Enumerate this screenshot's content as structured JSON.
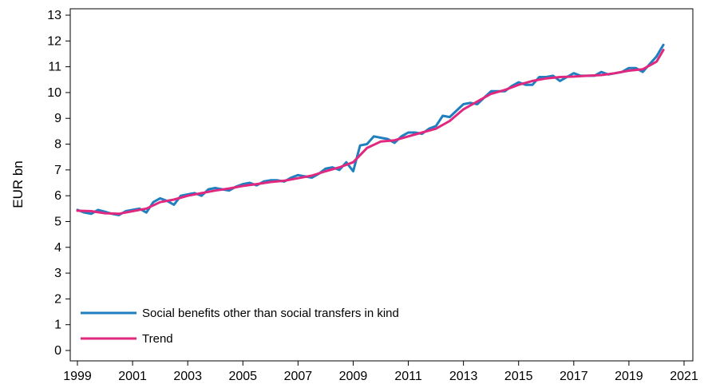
{
  "chart_data": {
    "type": "line",
    "title": "",
    "xlabel": "",
    "ylabel": "EUR bn",
    "xlim": [
      1999,
      2021
    ],
    "ylim": [
      0,
      13
    ],
    "xticks": [
      "1999",
      "2001",
      "2003",
      "2005",
      "2007",
      "2009",
      "2011",
      "2013",
      "2015",
      "2017",
      "2019",
      "2021"
    ],
    "yticks": [
      "0",
      "1",
      "2",
      "3",
      "4",
      "5",
      "6",
      "7",
      "8",
      "9",
      "10",
      "11",
      "12",
      "13"
    ],
    "grid": false,
    "legend_position": "bottom-left",
    "series": [
      {
        "name": "Social benefits other than social transfers in kind",
        "color": "#1f7fbf",
        "x": [
          1999.0,
          1999.25,
          1999.5,
          1999.75,
          2000.0,
          2000.25,
          2000.5,
          2000.75,
          2001.0,
          2001.25,
          2001.5,
          2001.75,
          2002.0,
          2002.25,
          2002.5,
          2002.75,
          2003.0,
          2003.25,
          2003.5,
          2003.75,
          2004.0,
          2004.25,
          2004.5,
          2004.75,
          2005.0,
          2005.25,
          2005.5,
          2005.75,
          2006.0,
          2006.25,
          2006.5,
          2006.75,
          2007.0,
          2007.25,
          2007.5,
          2007.75,
          2008.0,
          2008.25,
          2008.5,
          2008.75,
          2009.0,
          2009.25,
          2009.5,
          2009.75,
          2010.0,
          2010.25,
          2010.5,
          2010.75,
          2011.0,
          2011.25,
          2011.5,
          2011.75,
          2012.0,
          2012.25,
          2012.5,
          2012.75,
          2013.0,
          2013.25,
          2013.5,
          2013.75,
          2014.0,
          2014.25,
          2014.5,
          2014.75,
          2015.0,
          2015.25,
          2015.5,
          2015.75,
          2016.0,
          2016.25,
          2016.5,
          2016.75,
          2017.0,
          2017.25,
          2017.5,
          2017.75,
          2018.0,
          2018.25,
          2018.5,
          2018.75,
          2019.0,
          2019.25,
          2019.5,
          2019.75,
          2020.0,
          2020.25
        ],
        "values": [
          5.45,
          5.35,
          5.3,
          5.45,
          5.38,
          5.3,
          5.25,
          5.4,
          5.45,
          5.5,
          5.35,
          5.75,
          5.9,
          5.8,
          5.65,
          6.0,
          6.05,
          6.1,
          6.0,
          6.25,
          6.3,
          6.25,
          6.2,
          6.35,
          6.45,
          6.5,
          6.4,
          6.55,
          6.6,
          6.6,
          6.55,
          6.7,
          6.8,
          6.75,
          6.7,
          6.85,
          7.05,
          7.1,
          7.0,
          7.3,
          6.95,
          7.95,
          8.0,
          8.3,
          8.25,
          8.2,
          8.05,
          8.3,
          8.45,
          8.45,
          8.4,
          8.6,
          8.7,
          9.1,
          9.05,
          9.3,
          9.55,
          9.6,
          9.55,
          9.8,
          10.05,
          10.05,
          10.05,
          10.25,
          10.4,
          10.3,
          10.3,
          10.6,
          10.6,
          10.65,
          10.45,
          10.6,
          10.75,
          10.65,
          10.65,
          10.65,
          10.8,
          10.7,
          10.75,
          10.8,
          10.95,
          10.95,
          10.8,
          11.1,
          11.4,
          11.85
        ]
      },
      {
        "name": "Trend",
        "color": "#e0287f",
        "x": [
          1999.0,
          1999.5,
          2000.0,
          2000.5,
          2001.0,
          2001.5,
          2002.0,
          2002.5,
          2003.0,
          2003.5,
          2004.0,
          2004.5,
          2005.0,
          2005.5,
          2006.0,
          2006.5,
          2007.0,
          2007.5,
          2008.0,
          2008.5,
          2009.0,
          2009.5,
          2010.0,
          2010.5,
          2011.0,
          2011.5,
          2012.0,
          2012.5,
          2013.0,
          2013.5,
          2014.0,
          2014.5,
          2015.0,
          2015.5,
          2016.0,
          2016.5,
          2017.0,
          2017.5,
          2018.0,
          2018.5,
          2019.0,
          2019.5,
          2020.0,
          2020.25
        ],
        "values": [
          5.42,
          5.4,
          5.32,
          5.3,
          5.4,
          5.5,
          5.75,
          5.85,
          6.0,
          6.1,
          6.2,
          6.28,
          6.38,
          6.45,
          6.53,
          6.58,
          6.68,
          6.78,
          6.95,
          7.1,
          7.3,
          7.85,
          8.1,
          8.15,
          8.3,
          8.45,
          8.6,
          8.9,
          9.35,
          9.65,
          9.95,
          10.1,
          10.3,
          10.45,
          10.55,
          10.6,
          10.62,
          10.65,
          10.68,
          10.75,
          10.85,
          10.9,
          11.2,
          11.65
        ]
      }
    ]
  }
}
